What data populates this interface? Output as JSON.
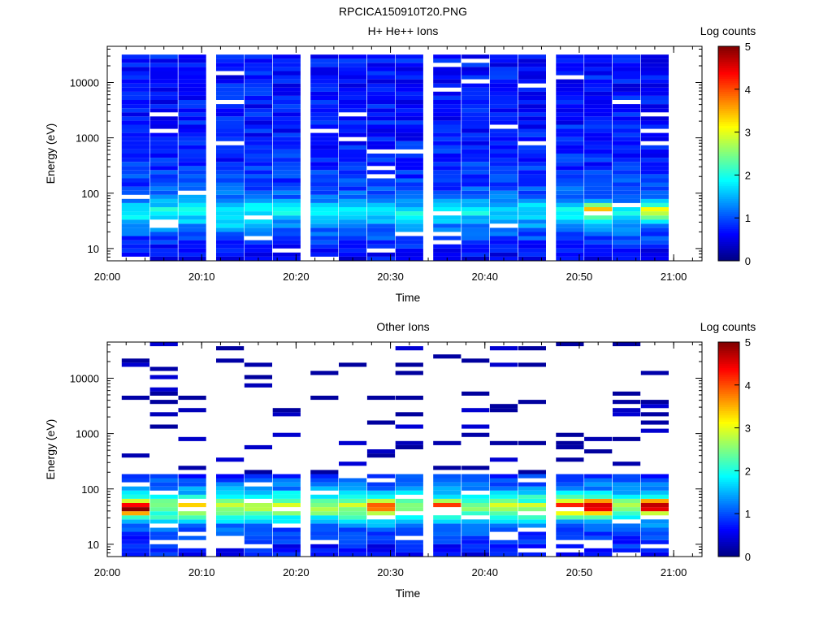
{
  "figure": {
    "title": "RPCICA150910T20.PNG"
  },
  "colors": {
    "background": "#ffffff",
    "axis": "#000000"
  },
  "colormap": "jet",
  "chart_data": [
    {
      "type": "heatmap",
      "title": "H+ He++ Ions",
      "xlabel": "Time",
      "ylabel": "Energy (eV)",
      "x_ticks": [
        "20:00",
        "20:10",
        "20:20",
        "20:30",
        "20:40",
        "20:50",
        "21:00"
      ],
      "y_ticks": [
        "10",
        "100",
        "1000",
        "10000"
      ],
      "xlim": [
        "20:00",
        "21:03"
      ],
      "ylim": [
        6,
        45000
      ],
      "y_scale": "log",
      "colorbar": {
        "label": "Log counts",
        "range": [
          0,
          5
        ],
        "ticks": [
          "0",
          "1",
          "2",
          "3",
          "4",
          "5"
        ]
      },
      "time_columns": [
        "20:03",
        "20:06",
        "20:09",
        "20:13",
        "20:16",
        "20:19",
        "20:23",
        "20:26",
        "20:29",
        "20:32",
        "20:36",
        "20:39",
        "20:42",
        "20:45",
        "20:49",
        "20:52",
        "20:55",
        "20:58"
      ],
      "energy_profile": {
        "energy_eV": [
          8,
          12,
          18,
          25,
          35,
          48,
          70,
          110,
          200,
          400,
          1000,
          3000,
          10000,
          30000
        ],
        "log_counts": [
          0.6,
          0.8,
          1.0,
          1.3,
          1.6,
          1.9,
          1.4,
          1.0,
          0.9,
          0.8,
          0.75,
          0.7,
          0.7,
          0.7
        ]
      },
      "peaks": [
        {
          "time": "20:06",
          "energy_eV": 27,
          "log_counts": 2.1
        },
        {
          "time": "20:13",
          "energy_eV": 28,
          "log_counts": 2.0
        },
        {
          "time": "20:26",
          "energy_eV": 28,
          "log_counts": 2.0
        },
        {
          "time": "20:52",
          "energy_eV": 50,
          "log_counts": 3.4
        },
        {
          "time": "20:58",
          "energy_eV": 48,
          "log_counts": 3.2
        }
      ]
    },
    {
      "type": "heatmap",
      "title": "Other Ions",
      "xlabel": "Time",
      "ylabel": "Energy (eV)",
      "x_ticks": [
        "20:00",
        "20:10",
        "20:20",
        "20:30",
        "20:40",
        "20:50",
        "21:00"
      ],
      "y_ticks": [
        "10",
        "100",
        "1000",
        "10000"
      ],
      "xlim": [
        "20:00",
        "21:03"
      ],
      "ylim": [
        6,
        45000
      ],
      "y_scale": "log",
      "colorbar": {
        "label": "Log counts",
        "range": [
          0,
          5
        ],
        "ticks": [
          "0",
          "1",
          "2",
          "3",
          "4",
          "5"
        ]
      },
      "time_columns": [
        "20:03",
        "20:06",
        "20:09",
        "20:13",
        "20:16",
        "20:19",
        "20:23",
        "20:26",
        "20:29",
        "20:32",
        "20:36",
        "20:39",
        "20:42",
        "20:45",
        "20:49",
        "20:52",
        "20:55",
        "20:58"
      ],
      "energy_profile": {
        "energy_eV": [
          8,
          12,
          18,
          25,
          35,
          48,
          70,
          110,
          200
        ],
        "log_counts": [
          0.7,
          0.8,
          1.0,
          1.5,
          2.2,
          2.8,
          2.0,
          1.2,
          0.7
        ]
      },
      "peaks": [
        {
          "time": "20:03",
          "energy_eV": 45,
          "log_counts": 4.2
        },
        {
          "time": "20:09",
          "energy_eV": 45,
          "log_counts": 2.7
        },
        {
          "time": "20:29",
          "energy_eV": 45,
          "log_counts": 3.0
        },
        {
          "time": "20:36",
          "energy_eV": 45,
          "log_counts": 3.5
        },
        {
          "time": "20:49",
          "energy_eV": 45,
          "log_counts": 3.6
        },
        {
          "time": "20:52",
          "energy_eV": 48,
          "log_counts": 4.0
        },
        {
          "time": "20:58",
          "energy_eV": 48,
          "log_counts": 4.1
        }
      ]
    }
  ]
}
